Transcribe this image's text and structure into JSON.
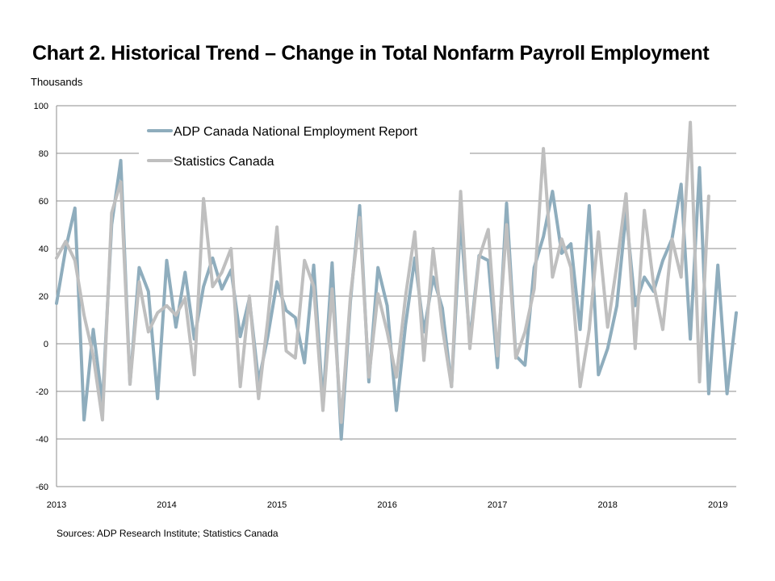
{
  "title": "Chart 2. Historical Trend – Change in Total Nonfarm Payroll Employment",
  "unit_label": "Thousands",
  "source": "Sources: ADP Research Institute; Statistics Canada",
  "colors": {
    "adp": "#8fadbd",
    "statcan": "#bfbfbf",
    "grid": "#8c8c8c"
  },
  "chart_data": {
    "type": "line",
    "ylim": [
      -60,
      100
    ],
    "y_ticks": [
      100,
      80,
      60,
      40,
      20,
      0,
      -20,
      -40,
      -60
    ],
    "x_ticks": [
      "2013",
      "2014",
      "2015",
      "2016",
      "2017",
      "2018",
      "2019"
    ],
    "x_start": "2013-01",
    "x_end": "2019-03",
    "ylabel": "Thousands",
    "grid": true,
    "legend_position": "top-left",
    "series": [
      {
        "name": "ADP Canada National Employment Report",
        "color": "#8fadbd",
        "values": [
          17,
          40,
          57,
          -32,
          6,
          -25,
          50,
          77,
          -17,
          32,
          22,
          -23,
          35,
          7,
          30,
          2,
          24,
          36,
          23,
          31,
          3,
          19,
          -16,
          3,
          26,
          14,
          11,
          -8,
          33,
          -25,
          34,
          -40,
          18,
          58,
          -16,
          32,
          16,
          -28,
          8,
          36,
          5,
          28,
          15,
          -18,
          52,
          1,
          37,
          35,
          -10,
          59,
          -5,
          -9,
          32,
          45,
          64,
          38,
          42,
          6,
          58,
          -13,
          -2,
          16,
          55,
          16,
          28,
          22,
          35,
          44,
          67,
          2,
          74,
          -21,
          33,
          -21,
          13
        ]
      },
      {
        "name": "Statistics Canada",
        "color": "#bfbfbf",
        "values": [
          36,
          43,
          35,
          12,
          -5,
          -32,
          55,
          68,
          -17,
          26,
          5,
          13,
          16,
          12,
          19,
          -13,
          61,
          24,
          30,
          40,
          -18,
          20,
          -23,
          10,
          49,
          -3,
          -6,
          35,
          24,
          -28,
          23,
          -33,
          20,
          53,
          -14,
          21,
          5,
          -14,
          20,
          47,
          -7,
          40,
          7,
          -18,
          64,
          -2,
          36,
          48,
          -5,
          50,
          -6,
          5,
          23,
          82,
          28,
          44,
          32,
          -18,
          6,
          47,
          7,
          33,
          63,
          -2,
          56,
          25,
          6,
          44,
          28,
          93,
          -16,
          62
        ]
      }
    ]
  }
}
